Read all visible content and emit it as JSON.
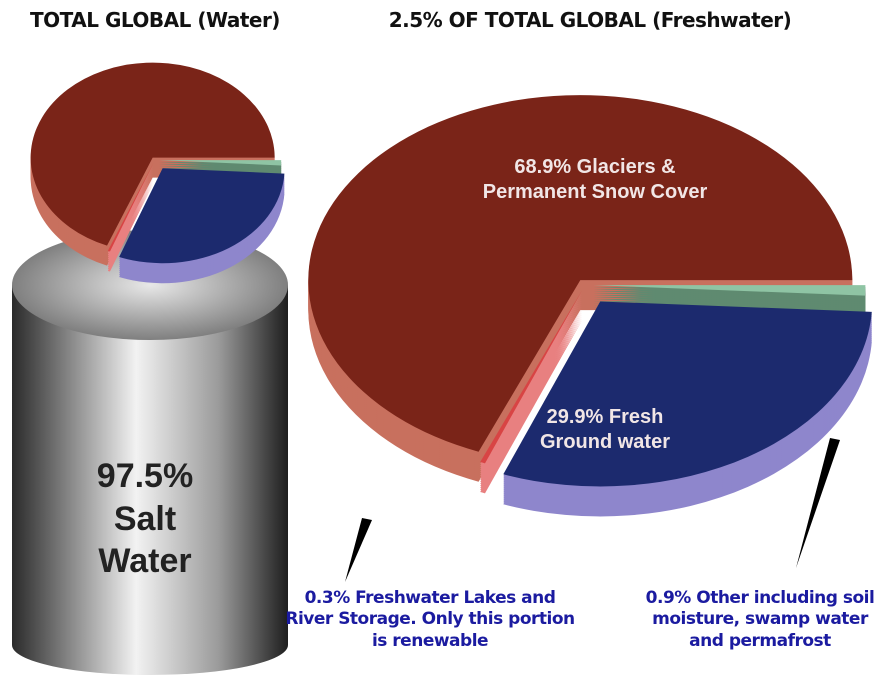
{
  "chart_data": [
    {
      "type": "cylinder",
      "title": "TOTAL GLOBAL (Water)",
      "values": [
        97.5
      ],
      "value_labels": [
        "97.5% Salt Water"
      ],
      "color": "#b8b8b8"
    },
    {
      "type": "pie",
      "title": "2.5% OF TOTAL GLOBAL (Freshwater)",
      "values": [
        68.9,
        29.9,
        0.3,
        0.9
      ],
      "value_labels": [
        "68.9% Glaciers & Permanent Snow Cover",
        "29.9% Fresh Ground water",
        "0.3% Freshwater Lakes and River Storage. Only this portion is renewable",
        "0.9% Other including soil moisture, swamp water and permafrost"
      ],
      "colors": [
        "#7a2418",
        "#1c2a6e",
        "#d84444",
        "#8fc4a4"
      ],
      "side_colors": [
        "#c8705e",
        "#8e86cc",
        "#e88080",
        "#5f8a70"
      ]
    }
  ]
}
